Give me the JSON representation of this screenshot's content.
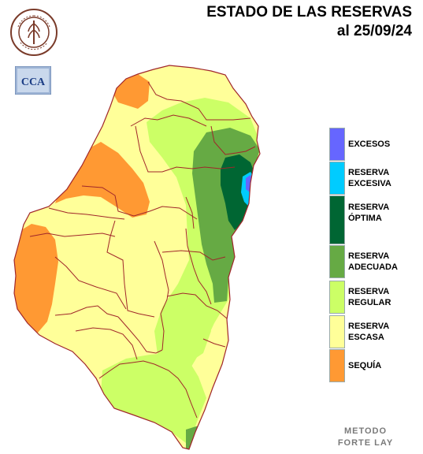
{
  "header": {
    "title_line1": "ESTADO DE LAS RESERVAS",
    "title_line2": "al 25/09/24"
  },
  "logos": {
    "bolsa": {
      "icon": "bolsa-de-cereales-seal",
      "text": "BOLSA DE CEREALES DE ENTRE RIOS"
    },
    "cca": {
      "icon": "cca-logo",
      "text": "CCA"
    }
  },
  "colors": {
    "exceso": "#6666ff",
    "excesiva": "#00ccff",
    "optima": "#006633",
    "adecuada": "#66aa44",
    "regular": "#ccff66",
    "escasa": "#ffff99",
    "sequia": "#ff9933"
  },
  "legend": [
    {
      "key": "exceso",
      "label": "EXCESOS",
      "color": "#6666ff"
    },
    {
      "key": "excesiva",
      "label": "RESERVA\nEXCESIVA",
      "color": "#00ccff"
    },
    {
      "key": "optima",
      "label": "RESERVA\nÓPTIMA",
      "color": "#006633"
    },
    {
      "key": "adecuada",
      "label": "RESERVA\nADECUADA",
      "color": "#66aa44"
    },
    {
      "key": "regular",
      "label": "RESERVA\nREGULAR",
      "color": "#ccff66"
    },
    {
      "key": "escasa",
      "label": "RESERVA\nESCASA",
      "color": "#ffff99"
    },
    {
      "key": "sequia",
      "label": "SEQUÍA",
      "color": "#ff9933"
    }
  ],
  "footer": {
    "method": "METODO\nFORTE LAY"
  }
}
